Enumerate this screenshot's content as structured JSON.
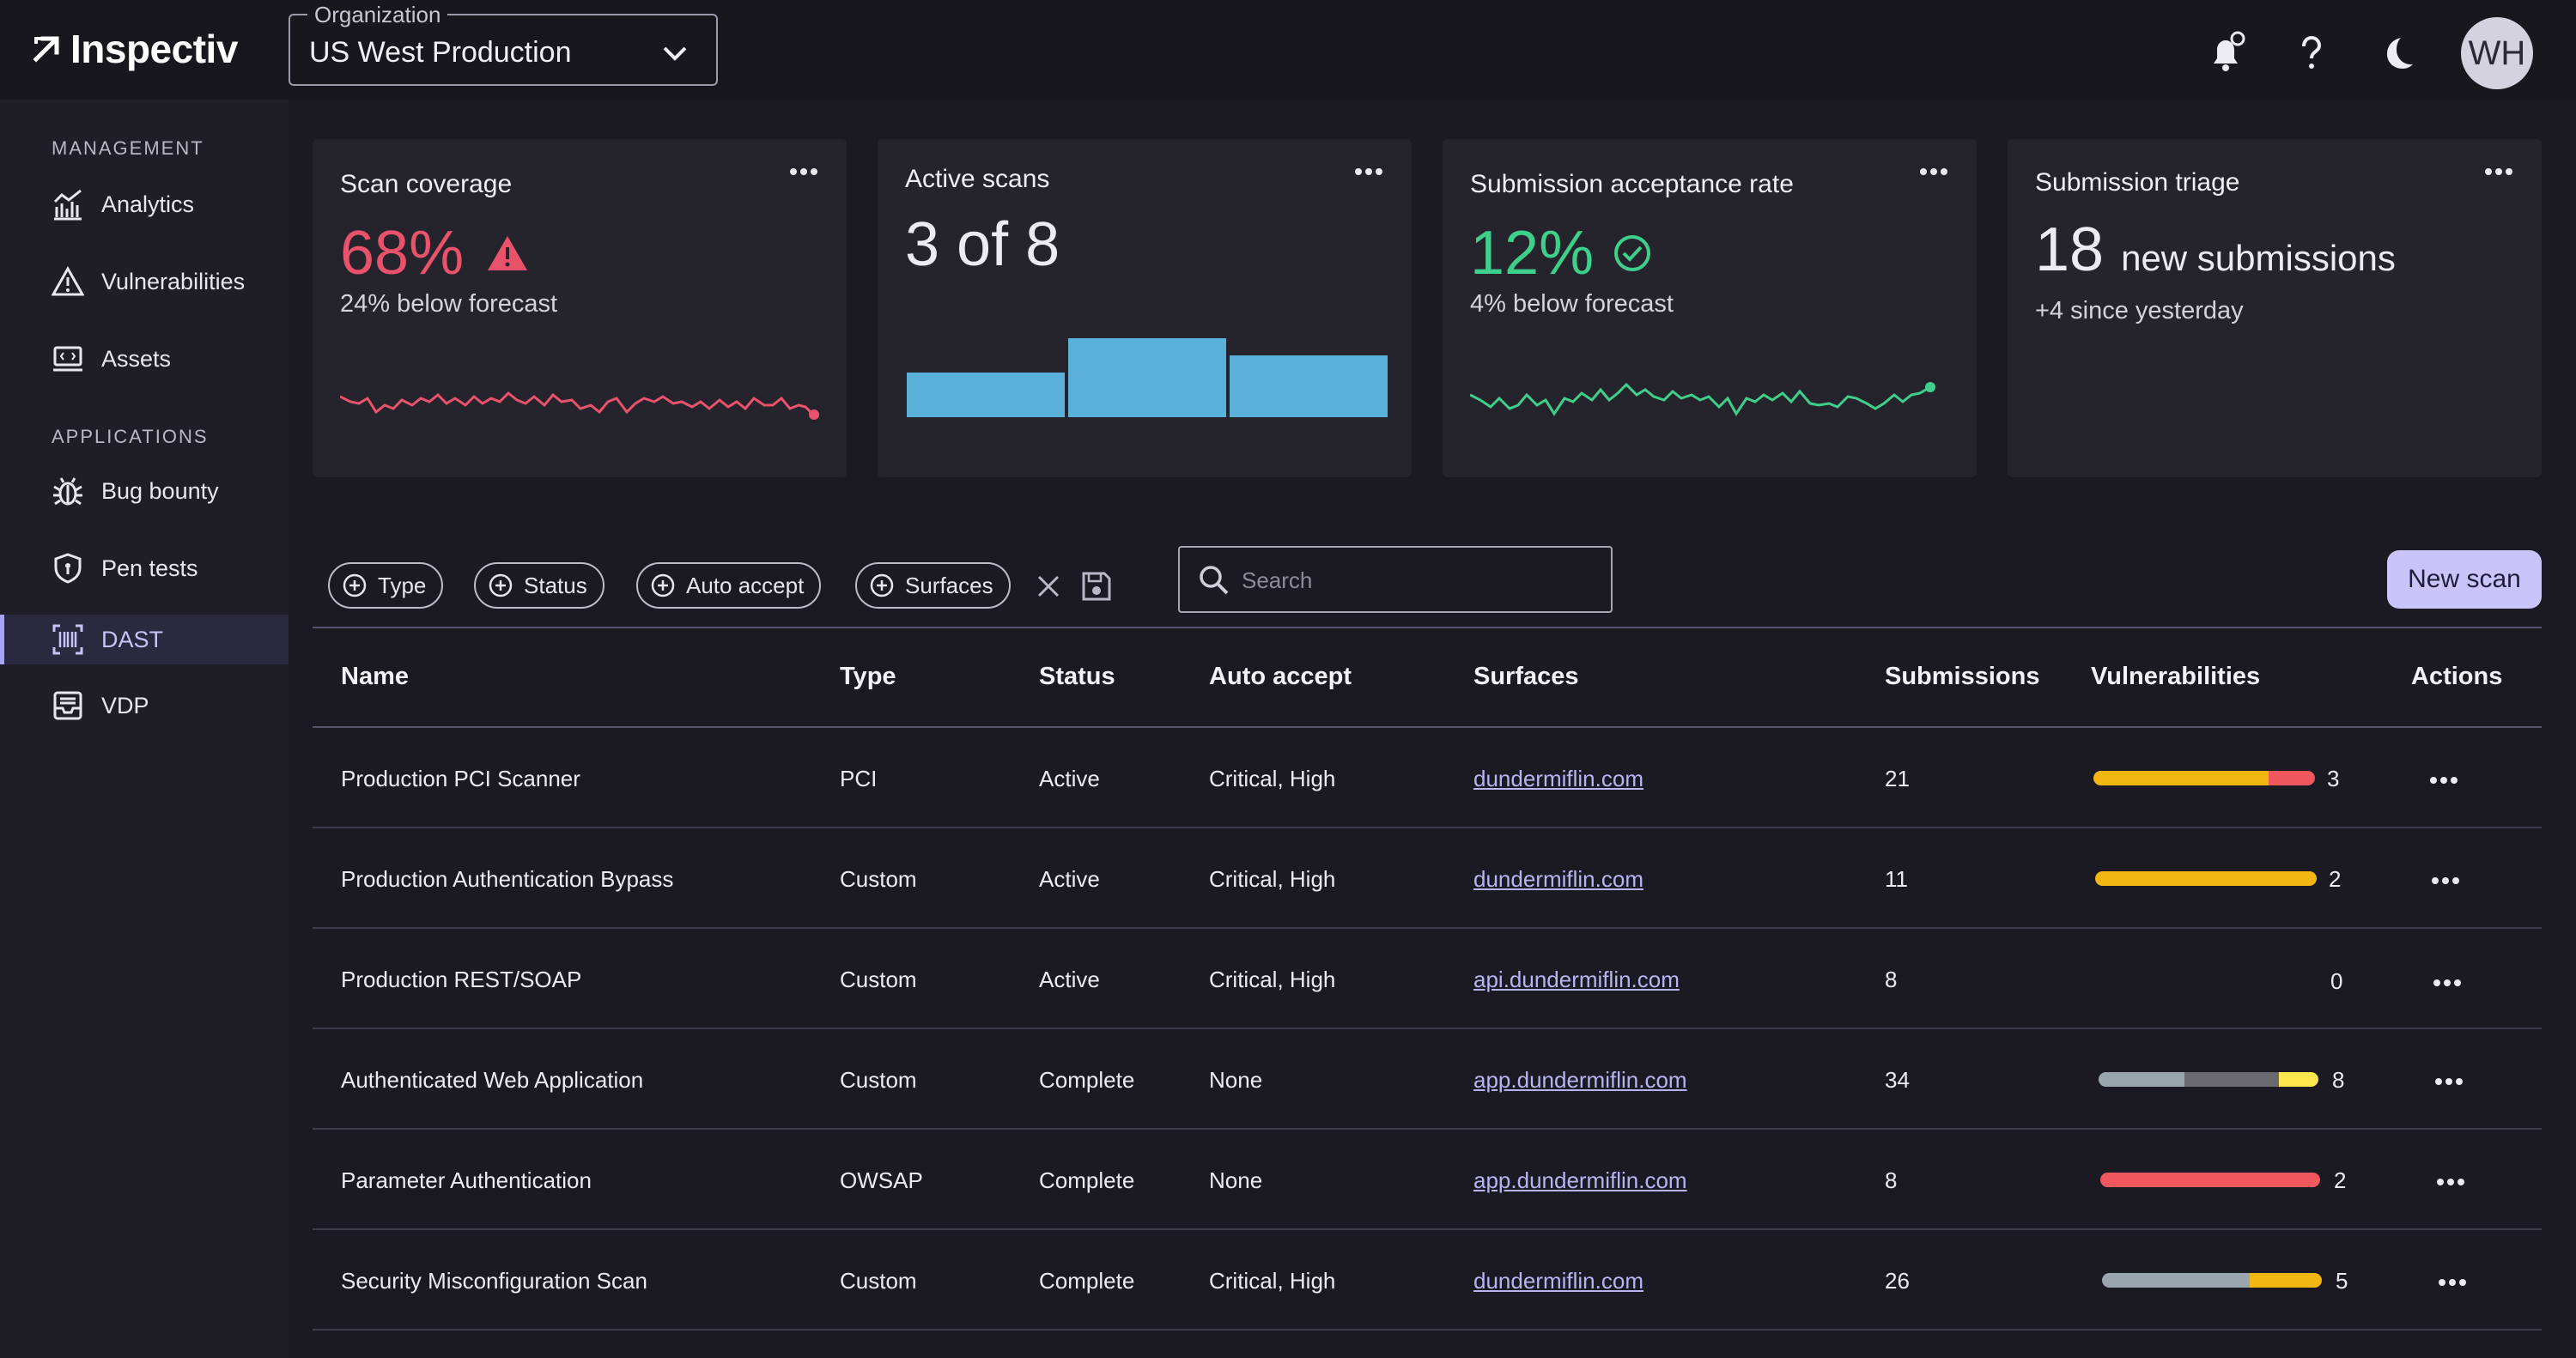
{
  "app": {
    "name": "Inspectiv",
    "org_label": "Organization",
    "org_value": "US West Production",
    "avatar_initials": "WH",
    "accent": "#c9c5fb"
  },
  "sidebar": {
    "sections": [
      {
        "title": "MANAGEMENT",
        "items": [
          {
            "label": "Analytics",
            "icon": "analytics-icon"
          },
          {
            "label": "Vulnerabilities",
            "icon": "warning-icon"
          },
          {
            "label": "Assets",
            "icon": "assets-icon"
          }
        ]
      },
      {
        "title": "APPLICATIONS",
        "items": [
          {
            "label": "Bug bounty",
            "icon": "bug-icon"
          },
          {
            "label": "Pen tests",
            "icon": "shield-icon"
          },
          {
            "label": "DAST",
            "icon": "barcode-icon",
            "active": true
          },
          {
            "label": "VDP",
            "icon": "inbox-icon"
          }
        ]
      }
    ]
  },
  "cards": {
    "scan_coverage": {
      "title": "Scan coverage",
      "value": "68%",
      "sub": "24% below forecast",
      "color": "#e8526a"
    },
    "active_scans": {
      "title": "Active scans",
      "value": "3 of 8",
      "color": "#5ab0d8"
    },
    "acceptance": {
      "title": "Submission acceptance rate",
      "value": "12%",
      "sub": "4% below forecast",
      "color": "#3ed08a"
    },
    "triage": {
      "title": "Submission triage",
      "value": "18",
      "value_suffix": "new submissions",
      "sub": "+4 since yesterday"
    }
  },
  "filters": {
    "chips": [
      "Type",
      "Status",
      "Auto accept",
      "Surfaces"
    ],
    "search_placeholder": "Search",
    "new_scan_label": "New scan"
  },
  "table": {
    "headers": [
      "Name",
      "Type",
      "Status",
      "Auto accept",
      "Surfaces",
      "Submissions",
      "Vulnerabilities",
      "Actions"
    ],
    "rows": [
      {
        "name": "Production PCI Scanner",
        "type": "PCI",
        "status": "Active",
        "auto": "Critical, High",
        "surface": "dundermiflin.com",
        "subs": "21",
        "vulns": "3"
      },
      {
        "name": "Production Authentication Bypass",
        "type": "Custom",
        "status": "Active",
        "auto": "Critical, High",
        "surface": "dundermiflin.com",
        "subs": "11",
        "vulns": "2"
      },
      {
        "name": "Production REST/SOAP",
        "type": "Custom",
        "status": "Active",
        "auto": "Critical, High",
        "surface": "api.dundermiflin.com",
        "subs": "8",
        "vulns": "0"
      },
      {
        "name": "Authenticated Web Application",
        "type": "Custom",
        "status": "Complete",
        "auto": "None",
        "surface": "app.dundermiflin.com",
        "subs": "34",
        "vulns": "8"
      },
      {
        "name": "Parameter Authentication",
        "type": "OWSAP",
        "status": "Complete",
        "auto": "None",
        "surface": "app.dundermiflin.com",
        "subs": "8",
        "vulns": "2"
      },
      {
        "name": "Security Misconfiguration Scan",
        "type": "Custom",
        "status": "Complete",
        "auto": "Critical, High",
        "surface": "dundermiflin.com",
        "subs": "26",
        "vulns": "5"
      }
    ]
  },
  "colors": {
    "high": "#f4b611",
    "critical": "#f0585e",
    "medium": "#ffe74f",
    "low": "#9aa6ad",
    "info": "#6b6a70"
  }
}
